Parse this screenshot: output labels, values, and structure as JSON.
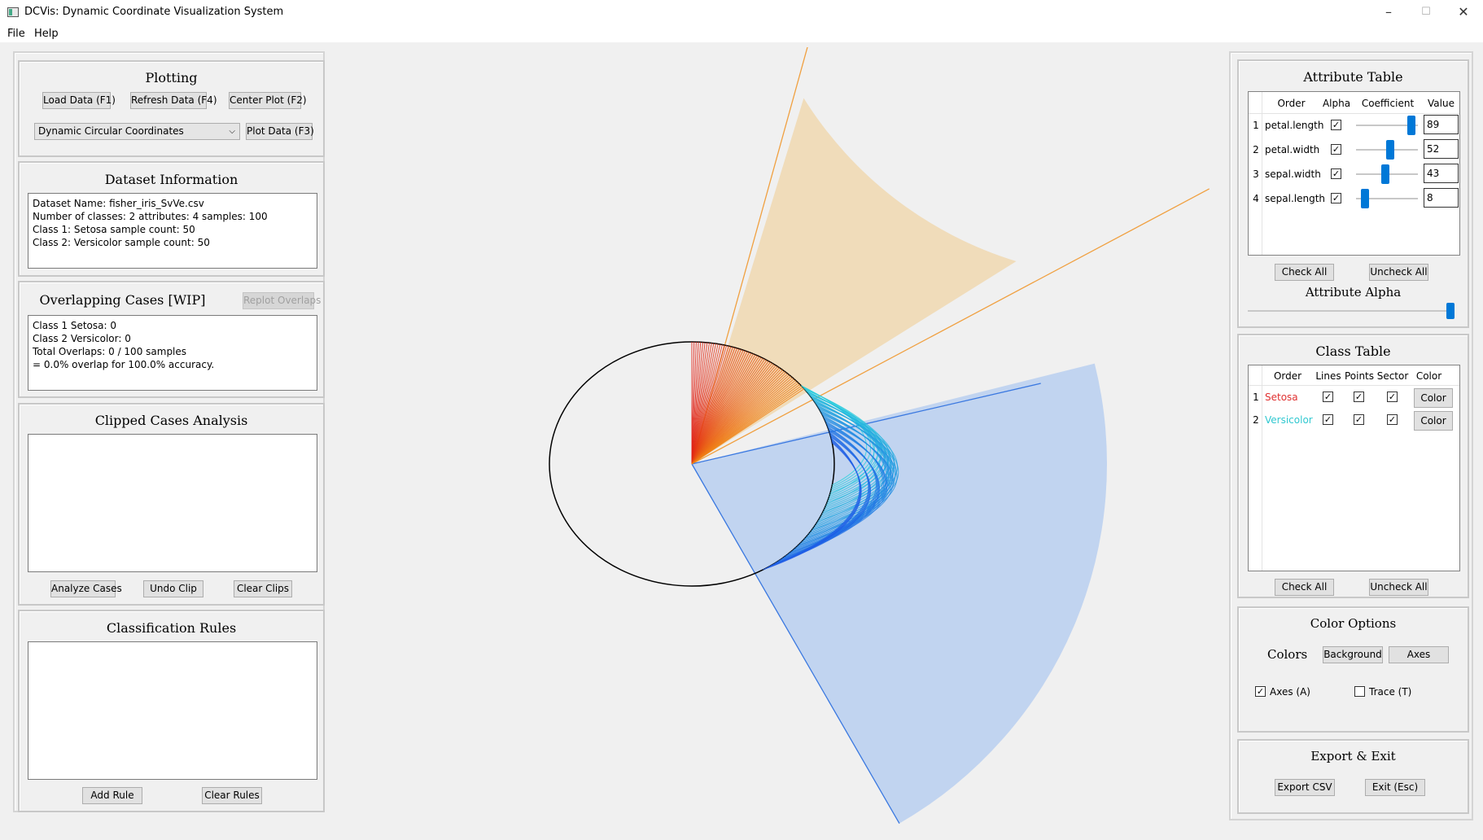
{
  "window": {
    "title": "DCVis: Dynamic Coordinate Visualization System",
    "minimize": "–",
    "maximize": "☐",
    "close": "✕"
  },
  "menu": {
    "file": "File",
    "help": "Help"
  },
  "plotting": {
    "title": "Plotting",
    "load": "Load Data (F1)",
    "refresh": "Refresh Data (F4)",
    "center": "Center Plot (F2)",
    "plot_type": "Dynamic Circular Coordinates",
    "plot": "Plot Data (F3)"
  },
  "dataset": {
    "title": "Dataset Information",
    "lines": [
      "Dataset Name: fisher_iris_SvVe.csv",
      "Number of classes: 2 attributes: 4 samples: 100",
      "Class 1: Setosa sample count: 50",
      "Class 2: Versicolor sample count: 50"
    ]
  },
  "overlap": {
    "title": "Overlapping Cases [WIP]",
    "replot": "Replot Overlaps",
    "lines": [
      "Class 1 Setosa: 0",
      "Class 2 Versicolor: 0",
      "Total Overlaps: 0 / 100 samples",
      "= 0.0% overlap for 100.0% accuracy."
    ]
  },
  "clipped": {
    "title": "Clipped Cases Analysis",
    "analyze": "Analyze Cases",
    "undo": "Undo Clip",
    "clear": "Clear Clips"
  },
  "rules": {
    "title": "Classification Rules",
    "add": "Add Rule",
    "clear": "Clear Rules"
  },
  "attribute_table": {
    "title": "Attribute Table",
    "headers": {
      "order": "Order",
      "alpha": "Alpha",
      "coefficient": "Coefficient",
      "value": "Value"
    },
    "rows": [
      {
        "idx": "1",
        "name": "petal.length",
        "alpha": "✓",
        "coef": 89,
        "value": "89"
      },
      {
        "idx": "2",
        "name": "petal.width",
        "alpha": "✓",
        "coef": 52,
        "value": "52"
      },
      {
        "idx": "3",
        "name": "sepal.width",
        "alpha": "✓",
        "coef": 43,
        "value": "43"
      },
      {
        "idx": "4",
        "name": "sepal.length",
        "alpha": "✓",
        "coef": 8,
        "value": "8"
      }
    ],
    "check_all": "Check All",
    "uncheck_all": "Uncheck All",
    "alpha_label": "Attribute Alpha",
    "alpha_level": 1.0
  },
  "class_table": {
    "title": "Class Table",
    "headers": {
      "order": "Order",
      "lines": "Lines",
      "points": "Points",
      "sector": "Sector",
      "color": "Color"
    },
    "rows": [
      {
        "idx": "1",
        "name": "Setosa",
        "color": "#e03030",
        "lines": "✓",
        "points": "✓",
        "sector": "✓",
        "button": "Color"
      },
      {
        "idx": "2",
        "name": "Versicolor",
        "color": "#30c8d0",
        "lines": "✓",
        "points": "✓",
        "sector": "✓",
        "button": "Color"
      }
    ],
    "check_all": "Check All",
    "uncheck_all": "Uncheck All"
  },
  "color_options": {
    "title": "Color Options",
    "colors_label": "Colors",
    "background": "Background",
    "axes": "Axes",
    "axes_check": "Axes (A)",
    "axes_checked": "✓",
    "trace_check": "Trace (T)",
    "trace_checked": ""
  },
  "export": {
    "title": "Export & Exit",
    "csv": "Export CSV",
    "exit": "Exit (Esc)"
  },
  "colors": {
    "setosa_sector": "#f0d8b0",
    "setosa_axis": "#f0a040",
    "versicolor_sector": "#b8cff0",
    "versicolor_axis": "#3a78e0"
  }
}
